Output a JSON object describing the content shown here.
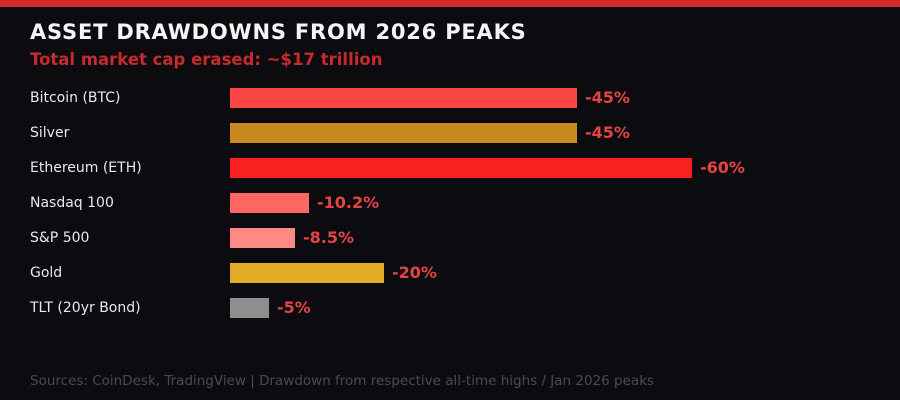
{
  "page": {
    "background_color": "#0c0c10",
    "accent_stripe_color": "#d32c2c"
  },
  "header": {
    "title": "ASSET DRAWDOWNS FROM 2026 PEAKS",
    "subtitle": "Total market cap erased: ~$17 trillion",
    "title_color": "#f5f5f5",
    "subtitle_color": "#c62b2b"
  },
  "chart_data": {
    "type": "bar",
    "orientation": "horizontal",
    "title": "ASSET DRAWDOWNS FROM 2026 PEAKS",
    "subtitle": "Total market cap erased: ~$17 trillion",
    "categories": [
      "Bitcoin (BTC)",
      "Silver",
      "Ethereum (ETH)",
      "Nasdaq 100",
      "S&P 500",
      "Gold",
      "TLT (20yr Bond)"
    ],
    "values": [
      -45,
      -45,
      -60,
      -10.2,
      -8.5,
      -20,
      -5
    ],
    "value_labels": [
      "-45%",
      "-45%",
      "-60%",
      "-10.2%",
      "-8.5%",
      "-20%",
      "-5%"
    ],
    "bar_colors": [
      "#fc4646",
      "#c8891f",
      "#f92020",
      "#ff6765",
      "#ff8a85",
      "#e1ab26",
      "#8f8f8f"
    ],
    "value_label_color": "#e64444",
    "xlabel": "",
    "ylabel": "",
    "xlim": [
      0,
      60
    ],
    "grid": false,
    "legend": "none",
    "units": "percent drawdown"
  },
  "footer": {
    "source_text": "Sources: CoinDesk, TradingView | Drawdown from respective all-time highs / Jan 2026 peaks"
  }
}
